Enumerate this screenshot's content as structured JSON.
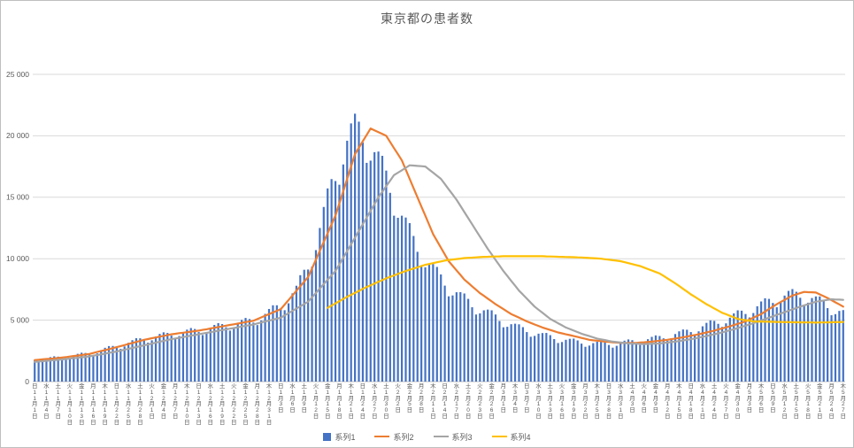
{
  "chart_data": {
    "type": "bar",
    "subtype": "combo-bar-and-lines",
    "title": "東京都の患者数",
    "legend": {
      "position": "bottom",
      "items": [
        "系列1",
        "系列2",
        "系列3",
        "系列4"
      ]
    },
    "y_axis": {
      "min": 0,
      "max": 25000,
      "step": 5000,
      "grid": true,
      "tick_labels": [
        "0",
        "5 000",
        "10 000",
        "15 000",
        "20 000",
        "25 000"
      ]
    },
    "x_axis": {
      "unit": "day",
      "start_date": "11月1日",
      "end_date": "5月27日",
      "tick_every_days": 3,
      "tick_labels": [
        "日11月1日",
        "水11月4日",
        "土11月7日",
        "火11月10日",
        "金11月13日",
        "月11月16日",
        "木11月19日",
        "日11月22日",
        "水11月25日",
        "土11月28日",
        "火12月1日",
        "金12月4日",
        "月12月7日",
        "木12月10日",
        "日12月13日",
        "水12月16日",
        "土12月19日",
        "火12月22日",
        "金12月25日",
        "月12月28日",
        "木12月31日",
        "日1月3日",
        "水1月6日",
        "土1月9日",
        "火1月12日",
        "金1月15日",
        "月1月18日",
        "木1月21日",
        "日1月24日",
        "水1月27日",
        "土1月30日",
        "火2月2日",
        "金2月5日",
        "月2月8日",
        "木2月11日",
        "日2月14日",
        "水2月17日",
        "土2月20日",
        "火2月23日",
        "金2月26日",
        "月3月1日",
        "木3月4日",
        "日3月7日",
        "水3月10日",
        "土3月13日",
        "火3月16日",
        "金3月19日",
        "月3月22日",
        "木3月25日",
        "日3月28日",
        "水3月31日",
        "土4月3日",
        "火4月6日",
        "金4月9日",
        "月4月12日",
        "木4月15日",
        "日4月18日",
        "水4月21日",
        "土4月24日",
        "火4月27日",
        "金4月30日",
        "月5月3日",
        "木5月6日",
        "日5月9日",
        "水5月12日",
        "土5月15日",
        "火5月18日",
        "金5月21日",
        "月5月24日",
        "木5月27日"
      ]
    },
    "series": [
      {
        "name": "系列1",
        "type": "bar",
        "color": "#4472C4",
        "start_index": 0,
        "values": [
          1730,
          1630,
          1730,
          1890,
          1990,
          2060,
          2030,
          1920,
          1820,
          1940,
          2130,
          2260,
          2350,
          2330,
          2210,
          2120,
          2300,
          2560,
          2750,
          2890,
          2900,
          2780,
          2660,
          2860,
          3160,
          3370,
          3530,
          3520,
          3360,
          3170,
          3360,
          3670,
          3880,
          4010,
          3960,
          3740,
          3510,
          3710,
          4030,
          4230,
          4360,
          4280,
          4030,
          3790,
          4010,
          4370,
          4610,
          4760,
          4680,
          4420,
          4150,
          4380,
          4770,
          5020,
          5180,
          5090,
          4800,
          4600,
          4970,
          5510,
          5910,
          6210,
          6210,
          5950,
          5810,
          6370,
          7180,
          7800,
          8660,
          9100,
          9120,
          9350,
          10700,
          12500,
          14210,
          15720,
          16480,
          16320,
          16020,
          17670,
          19600,
          21010,
          21800,
          21150,
          19460,
          17800,
          17980,
          18670,
          18720,
          18370,
          17170,
          15360,
          13500,
          13330,
          13500,
          13350,
          12900,
          11850,
          10560,
          9350,
          9300,
          9600,
          9570,
          9330,
          8720,
          7810,
          6940,
          7010,
          7270,
          7280,
          7170,
          6730,
          6050,
          5460,
          5550,
          5800,
          5860,
          5800,
          5460,
          4930,
          4420,
          4460,
          4670,
          4710,
          4660,
          4430,
          4030,
          3650,
          3720,
          3900,
          3950,
          3960,
          3780,
          3460,
          3140,
          3220,
          3400,
          3480,
          3500,
          3350,
          3090,
          2830,
          2930,
          3130,
          3240,
          3290,
          3190,
          2980,
          2760,
          2910,
          3170,
          3330,
          3430,
          3370,
          3170,
          2980,
          3160,
          3450,
          3640,
          3760,
          3710,
          3520,
          3320,
          3530,
          3870,
          4090,
          4240,
          4220,
          4030,
          3830,
          4090,
          4500,
          4780,
          4980,
          4940,
          4700,
          4450,
          4740,
          5200,
          5550,
          5800,
          5770,
          5500,
          5220,
          5580,
          6130,
          6520,
          6780,
          6730,
          6400,
          6050,
          6420,
          7000,
          7380,
          7530,
          7310,
          6820,
          6230,
          6420,
          6800,
          6930,
          6930,
          6590,
          5980,
          5400,
          5490,
          5750,
          5820
        ]
      },
      {
        "name": "系列2",
        "type": "line",
        "color": "#ED7D31",
        "start_index": 0,
        "values": [
          1750,
          1780,
          1810,
          1840,
          1860,
          1890,
          1920,
          1950,
          1990,
          2040,
          2080,
          2120,
          2160,
          2210,
          2250,
          2330,
          2410,
          2490,
          2560,
          2640,
          2720,
          2800,
          2890,
          2970,
          3060,
          3140,
          3230,
          3310,
          3400,
          3460,
          3530,
          3590,
          3660,
          3720,
          3790,
          3850,
          3890,
          3940,
          3980,
          4020,
          4060,
          4110,
          4150,
          4210,
          4260,
          4320,
          4380,
          4440,
          4490,
          4550,
          4610,
          4660,
          4720,
          4780,
          4840,
          4890,
          4950,
          5090,
          5220,
          5360,
          5490,
          5630,
          5760,
          5900,
          6270,
          6640,
          7010,
          7390,
          7760,
          8130,
          8500,
          9210,
          9930,
          10640,
          11360,
          12070,
          12790,
          13500,
          14500,
          15500,
          16500,
          17500,
          18500,
          19030,
          19550,
          20080,
          20600,
          20450,
          20300,
          20150,
          20000,
          19500,
          19000,
          18500,
          18000,
          17250,
          16500,
          15750,
          15000,
          14250,
          13500,
          12750,
          12000,
          11450,
          10900,
          10350,
          9800,
          9430,
          9050,
          8680,
          8300,
          8030,
          7750,
          7480,
          7200,
          6980,
          6750,
          6530,
          6300,
          6100,
          5900,
          5700,
          5500,
          5350,
          5200,
          5050,
          4900,
          4780,
          4650,
          4530,
          4400,
          4300,
          4200,
          4100,
          4000,
          3930,
          3850,
          3780,
          3700,
          3630,
          3550,
          3480,
          3400,
          3360,
          3330,
          3290,
          3250,
          3230,
          3200,
          3180,
          3150,
          3150,
          3150,
          3150,
          3150,
          3180,
          3200,
          3230,
          3250,
          3290,
          3330,
          3360,
          3400,
          3450,
          3500,
          3550,
          3600,
          3660,
          3730,
          3790,
          3850,
          3930,
          4000,
          4080,
          4150,
          4240,
          4330,
          4410,
          4500,
          4600,
          4700,
          4800,
          4900,
          5050,
          5200,
          5350,
          5500,
          5700,
          5900,
          6100,
          6300,
          6480,
          6650,
          6830,
          7000,
          7100,
          7200,
          7300,
          7280,
          7270,
          7250,
          7100,
          6950,
          6800,
          6630,
          6450,
          6280,
          6100
        ]
      },
      {
        "name": "系列3",
        "type": "line",
        "color": "#A5A5A5",
        "start_index": 0,
        "values": [
          1600,
          1630,
          1660,
          1690,
          1710,
          1740,
          1770,
          1800,
          1840,
          1870,
          1910,
          1940,
          1980,
          2010,
          2050,
          2110,
          2160,
          2220,
          2280,
          2340,
          2390,
          2450,
          2520,
          2590,
          2660,
          2740,
          2810,
          2880,
          2950,
          3020,
          3090,
          3160,
          3240,
          3310,
          3380,
          3450,
          3510,
          3560,
          3620,
          3680,
          3740,
          3790,
          3850,
          3910,
          3960,
          4020,
          4080,
          4140,
          4190,
          4250,
          4310,
          4360,
          4420,
          4480,
          4540,
          4590,
          4650,
          4730,
          4810,
          4890,
          4960,
          5040,
          5120,
          5200,
          5390,
          5570,
          5760,
          5940,
          6130,
          6310,
          6500,
          6860,
          7210,
          7570,
          7930,
          8290,
          8640,
          9000,
          9540,
          10090,
          10630,
          11170,
          11710,
          12260,
          12800,
          13350,
          13900,
          14450,
          15000,
          15450,
          15900,
          16350,
          16800,
          17000,
          17200,
          17400,
          17600,
          17580,
          17550,
          17530,
          17500,
          17250,
          17000,
          16750,
          16500,
          16080,
          15650,
          15230,
          14800,
          14300,
          13800,
          13300,
          12800,
          12300,
          11800,
          11300,
          10800,
          10350,
          9900,
          9450,
          9000,
          8600,
          8200,
          7800,
          7400,
          7080,
          6750,
          6430,
          6100,
          5850,
          5600,
          5350,
          5100,
          4930,
          4750,
          4580,
          4400,
          4280,
          4150,
          4030,
          3900,
          3800,
          3700,
          3600,
          3500,
          3440,
          3380,
          3310,
          3250,
          3210,
          3180,
          3140,
          3100,
          3090,
          3080,
          3060,
          3050,
          3060,
          3080,
          3090,
          3100,
          3140,
          3180,
          3210,
          3250,
          3300,
          3350,
          3400,
          3450,
          3510,
          3580,
          3640,
          3700,
          3780,
          3850,
          3930,
          4000,
          4090,
          4180,
          4260,
          4350,
          4450,
          4550,
          4650,
          4750,
          4860,
          4980,
          5090,
          5200,
          5310,
          5430,
          5540,
          5650,
          5760,
          5880,
          5990,
          6100,
          6200,
          6300,
          6400,
          6500,
          6550,
          6600,
          6650,
          6700,
          6680,
          6670,
          6650
        ]
      },
      {
        "name": "系列4",
        "type": "line",
        "color": "#FFC000",
        "start_index": 75,
        "values": [
          6000,
          6180,
          6360,
          6540,
          6720,
          6900,
          7060,
          7220,
          7380,
          7540,
          7700,
          7840,
          7980,
          8120,
          8260,
          8400,
          8520,
          8640,
          8760,
          8880,
          9000,
          9100,
          9200,
          9300,
          9400,
          9500,
          9570,
          9640,
          9710,
          9780,
          9850,
          9890,
          9930,
          9970,
          10010,
          10050,
          10070,
          10090,
          10110,
          10130,
          10150,
          10160,
          10170,
          10180,
          10190,
          10200,
          10200,
          10200,
          10200,
          10200,
          10200,
          10200,
          10200,
          10200,
          10200,
          10200,
          10190,
          10180,
          10170,
          10160,
          10150,
          10140,
          10130,
          10120,
          10110,
          10100,
          10080,
          10060,
          10040,
          10020,
          10000,
          9960,
          9920,
          9880,
          9840,
          9800,
          9720,
          9640,
          9560,
          9480,
          9400,
          9280,
          9160,
          9040,
          8920,
          8800,
          8600,
          8400,
          8200,
          8000,
          7780,
          7550,
          7330,
          7100,
          6900,
          6700,
          6500,
          6300,
          6130,
          5950,
          5780,
          5600,
          5480,
          5350,
          5230,
          5100,
          5050,
          5000,
          4950,
          4900,
          4890,
          4880,
          4880,
          4870,
          4860,
          4850,
          4850,
          4840,
          4840,
          4830,
          4830,
          4820,
          4820,
          4810,
          4810,
          4800,
          4810,
          4810,
          4820,
          4830,
          4840,
          4840,
          4850
        ]
      }
    ],
    "colors": {
      "grid": "#D9D9D9",
      "axis": "#BFBFBF",
      "text": "#595959"
    }
  }
}
